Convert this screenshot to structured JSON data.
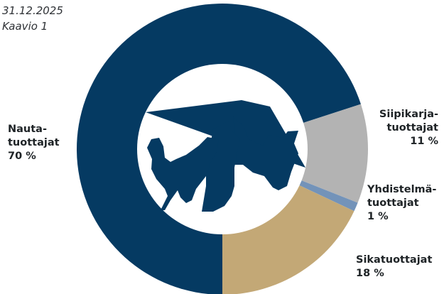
{
  "header": {
    "date": "31.12.2025",
    "caption": "Kaavio 1"
  },
  "colors": {
    "nauta": "#053a62",
    "siipikarja": "#b3b3b3",
    "yhdistelma": "#7393b9",
    "sika": "#c3a876",
    "center_fill": "#ffffff",
    "animals": "#053a62"
  },
  "center_icon": "animals-silhouette-icon",
  "chart_data": {
    "type": "pie",
    "variant": "donut",
    "start": "6 o'clock, clockwise",
    "slices": [
      {
        "key": "nauta",
        "label_lines": [
          "Nauta-",
          "tuottajat"
        ],
        "percent_label": "70 %",
        "value": 70
      },
      {
        "key": "siipikarja",
        "label_lines": [
          "Siipikarja-",
          "tuottajat"
        ],
        "percent_label": "11 %",
        "value": 11
      },
      {
        "key": "yhdistelma",
        "label_lines": [
          "Yhdistelmä-",
          "tuottajat"
        ],
        "percent_label": "1 %",
        "value": 1
      },
      {
        "key": "sika",
        "label_lines": [
          "Sikatuottajat"
        ],
        "percent_label": "18 %",
        "value": 18
      }
    ]
  }
}
